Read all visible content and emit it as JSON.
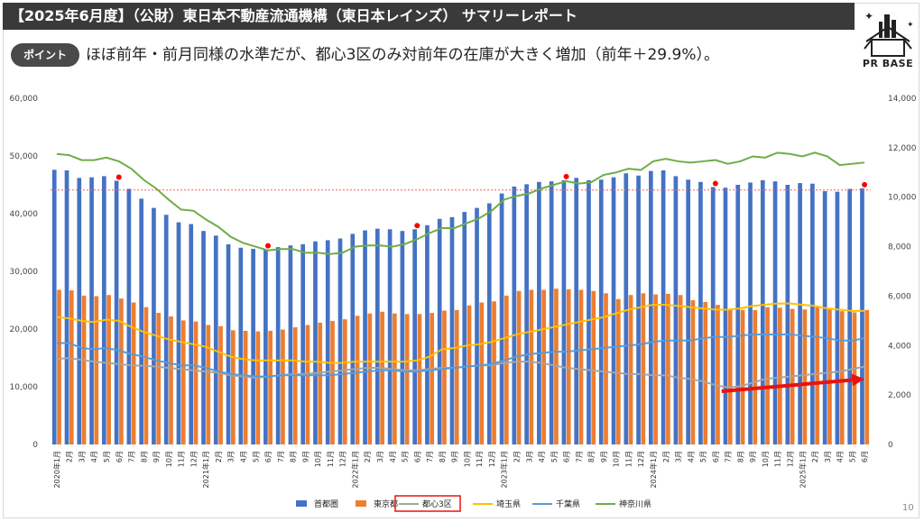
{
  "header": {
    "title": "【2025年6月度】（公財）東日本不動産流通機構（東日本レインズ） サマリーレポート",
    "point_badge": "ポイント",
    "point_text": "ほぼ前年・前月同様の水準だが、都心3区のみ対前年の在庫が大きく増加（前年＋29.9%）。"
  },
  "logo": {
    "text": "PR BASE",
    "icon": "house-box-icon"
  },
  "page_number": "10",
  "colors": {
    "shutoken": "#4472C4",
    "tokyo": "#ED7D31",
    "toshin3": "#A5A5A5",
    "saitama": "#FFC000",
    "chiba": "#5B9BD5",
    "kanagawa": "#70AD47",
    "arrow": "#E8130F",
    "marker": "#FF0000",
    "refline": "#FF5C5C",
    "legend_highlight": "#E8130F"
  },
  "chart_data": {
    "type": "bar",
    "x": [
      "2020年1月",
      "2月",
      "3月",
      "4月",
      "5月",
      "6月",
      "7月",
      "8月",
      "9月",
      "10月",
      "11月",
      "12月",
      "2021年1月",
      "2月",
      "3月",
      "4月",
      "5月",
      "6月",
      "7月",
      "8月",
      "9月",
      "10月",
      "11月",
      "12月",
      "2022年1月",
      "2月",
      "3月",
      "4月",
      "5月",
      "6月",
      "7月",
      "8月",
      "9月",
      "10月",
      "11月",
      "12月",
      "2023年1月",
      "2月",
      "3月",
      "4月",
      "5月",
      "6月",
      "7月",
      "8月",
      "9月",
      "10月",
      "11月",
      "12月",
      "2024年1月",
      "2月",
      "3月",
      "4月",
      "5月",
      "6月",
      "7月",
      "8月",
      "9月",
      "10月",
      "11月",
      "12月",
      "2025年1月",
      "2月",
      "3月",
      "4月",
      "5月",
      "6月"
    ],
    "ylim_left": [
      0,
      60000
    ],
    "yticks_left": [
      "0",
      "10,000",
      "20,000",
      "30,000",
      "40,000",
      "50,000",
      "60,000"
    ],
    "ylim_right": [
      0,
      14000
    ],
    "yticks_right": [
      "0",
      "2,000",
      "4,000",
      "6,000",
      "8,000",
      "10,000",
      "12,000",
      "14,000"
    ],
    "bar_series": [
      {
        "name": "首都圏",
        "axis": "left",
        "values": [
          47600,
          47500,
          46200,
          46300,
          46500,
          45700,
          44300,
          42600,
          41000,
          39800,
          38500,
          38200,
          37000,
          36200,
          34700,
          34100,
          33900,
          33800,
          34200,
          34500,
          34700,
          35200,
          35400,
          35700,
          36500,
          37100,
          37400,
          37300,
          37000,
          37300,
          38000,
          39100,
          39400,
          40300,
          41000,
          41800,
          43500,
          44700,
          45100,
          45500,
          45600,
          45800,
          46200,
          45800,
          45900,
          46300,
          47000,
          46600,
          47400,
          47500,
          46500,
          45900,
          45500,
          44600,
          44500,
          45000,
          45400,
          45800,
          45600,
          45000,
          45300,
          45200,
          43900,
          43800,
          44300,
          44400
        ]
      },
      {
        "name": "東京都",
        "axis": "left",
        "values": [
          26800,
          26700,
          25800,
          25700,
          25900,
          25300,
          24600,
          23800,
          22800,
          22200,
          21500,
          21300,
          20700,
          20500,
          19800,
          19700,
          19600,
          19700,
          19900,
          20300,
          20700,
          21100,
          21400,
          21700,
          22300,
          22700,
          23000,
          22700,
          22600,
          22600,
          22800,
          23200,
          23300,
          24100,
          24600,
          24800,
          25800,
          26600,
          26800,
          26800,
          27000,
          26900,
          26800,
          26600,
          26200,
          25200,
          25900,
          26200,
          26000,
          26100,
          25900,
          25000,
          24700,
          24200,
          23400,
          23300,
          23300,
          23800,
          23700,
          23500,
          23400,
          23800,
          23400,
          23100,
          22900,
          23300
        ]
      }
    ],
    "line_series": [
      {
        "name": "都心3区",
        "axis": "right",
        "values": [
          3450,
          3500,
          3420,
          3350,
          3300,
          3250,
          3200,
          3180,
          3150,
          3100,
          3050,
          3000,
          2950,
          2900,
          2800,
          2750,
          2700,
          2750,
          2800,
          2850,
          2850,
          2900,
          2950,
          3000,
          3050,
          3100,
          3100,
          3050,
          3000,
          3000,
          3050,
          3100,
          3100,
          3150,
          3200,
          3200,
          3300,
          3350,
          3350,
          3300,
          3200,
          3100,
          3050,
          3000,
          2950,
          2900,
          2850,
          2850,
          2800,
          2800,
          2700,
          2650,
          2550,
          2400,
          2300,
          2350,
          2500,
          2650,
          2700,
          2750,
          2800,
          2850,
          2900,
          2950,
          3050,
          3150
        ]
      },
      {
        "name": "埼玉県",
        "axis": "right",
        "values": [
          5150,
          5100,
          5000,
          4950,
          5050,
          5000,
          4750,
          4550,
          4400,
          4250,
          4150,
          4050,
          3950,
          3750,
          3550,
          3450,
          3400,
          3400,
          3400,
          3400,
          3350,
          3350,
          3300,
          3300,
          3350,
          3350,
          3350,
          3350,
          3350,
          3400,
          3550,
          3850,
          3900,
          4000,
          4050,
          4150,
          4300,
          4450,
          4550,
          4650,
          4750,
          4850,
          4950,
          5050,
          5150,
          5300,
          5450,
          5550,
          5650,
          5650,
          5600,
          5550,
          5500,
          5450,
          5450,
          5500,
          5600,
          5650,
          5700,
          5700,
          5650,
          5600,
          5500,
          5450,
          5400,
          5400
        ]
      },
      {
        "name": "千葉県",
        "axis": "right",
        "values": [
          4100,
          4100,
          3900,
          3850,
          3900,
          3800,
          3650,
          3550,
          3400,
          3300,
          3200,
          3200,
          3100,
          2950,
          2850,
          2800,
          2750,
          2750,
          2800,
          2800,
          2800,
          2800,
          2800,
          2850,
          2900,
          2950,
          3000,
          3000,
          2950,
          2950,
          3000,
          3050,
          3100,
          3150,
          3200,
          3250,
          3400,
          3550,
          3650,
          3700,
          3750,
          3750,
          3800,
          3850,
          3900,
          3950,
          4000,
          4050,
          4150,
          4200,
          4200,
          4200,
          4300,
          4350,
          4350,
          4400,
          4450,
          4450,
          4450,
          4450,
          4400,
          4350,
          4300,
          4200,
          4200,
          4300
        ]
      },
      {
        "name": "神奈川県",
        "axis": "right",
        "values": [
          11750,
          11700,
          11500,
          11500,
          11600,
          11450,
          11150,
          10700,
          10350,
          9900,
          9500,
          9450,
          9100,
          8800,
          8400,
          8150,
          8000,
          7850,
          7900,
          7900,
          7750,
          7750,
          7700,
          7750,
          8000,
          8050,
          8050,
          8000,
          8100,
          8300,
          8550,
          8750,
          8750,
          8950,
          9150,
          9450,
          9900,
          10050,
          10150,
          10350,
          10500,
          10650,
          10550,
          10600,
          10900,
          11000,
          11150,
          11100,
          11450,
          11550,
          11450,
          11400,
          11450,
          11500,
          11350,
          11450,
          11650,
          11600,
          11800,
          11750,
          11650,
          11800,
          11650,
          11300,
          11350,
          11400
        ]
      }
    ],
    "reference_line": {
      "axis": "left",
      "value": 44100
    },
    "red_markers": [
      {
        "x_index": 5,
        "axis": "left",
        "value": 45700
      },
      {
        "x_index": 17,
        "axis": "left",
        "value": 33800
      },
      {
        "x_index": 29,
        "axis": "left",
        "value": 37300
      },
      {
        "x_index": 41,
        "axis": "left",
        "value": 45800
      },
      {
        "x_index": 53,
        "axis": "left",
        "value": 44600
      },
      {
        "x_index": 65,
        "axis": "left",
        "value": 44400
      }
    ],
    "annotation_arrow": {
      "from_index": 54,
      "from_value": 2150,
      "to_index": 65,
      "to_value": 2650,
      "axis": "right"
    },
    "legend_position": "bottom",
    "legend_highlighted": "都心3区",
    "grid": false
  }
}
